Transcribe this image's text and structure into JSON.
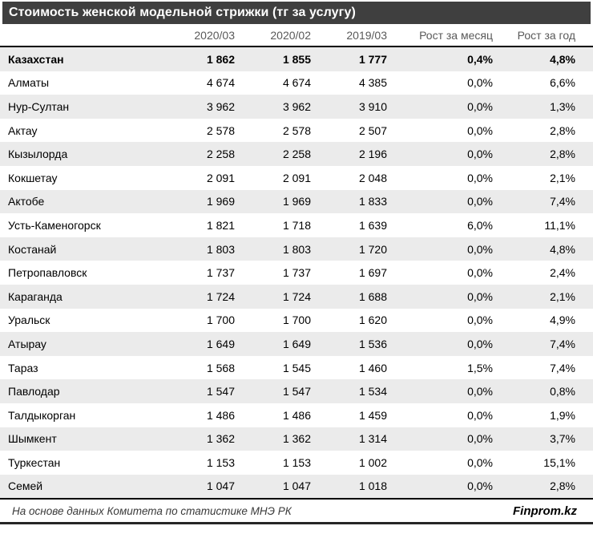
{
  "title": "Стоимость женской модельной стрижки (тг за услугу)",
  "colors": {
    "title_bar_bg": "#3f3f3f",
    "title_text": "#ffffff",
    "column_header_text": "#595959",
    "row_stripe": "#ebebeb",
    "body_text": "#000000",
    "border": "#000000"
  },
  "table": {
    "columns": [
      "",
      "2020/03",
      "2020/02",
      "2019/03",
      "Рост за месяц",
      "Рост за год"
    ],
    "rows": [
      {
        "bold": true,
        "cells": [
          "Казахстан",
          "1 862",
          "1 855",
          "1 777",
          "0,4%",
          "4,8%"
        ]
      },
      {
        "bold": false,
        "cells": [
          "Алматы",
          "4 674",
          "4 674",
          "4 385",
          "0,0%",
          "6,6%"
        ]
      },
      {
        "bold": false,
        "cells": [
          "Нур-Султан",
          "3 962",
          "3 962",
          "3 910",
          "0,0%",
          "1,3%"
        ]
      },
      {
        "bold": false,
        "cells": [
          "Актау",
          "2 578",
          "2 578",
          "2 507",
          "0,0%",
          "2,8%"
        ]
      },
      {
        "bold": false,
        "cells": [
          "Кызылорда",
          "2 258",
          "2 258",
          "2 196",
          "0,0%",
          "2,8%"
        ]
      },
      {
        "bold": false,
        "cells": [
          "Кокшетау",
          "2 091",
          "2 091",
          "2 048",
          "0,0%",
          "2,1%"
        ]
      },
      {
        "bold": false,
        "cells": [
          "Актобе",
          "1 969",
          "1 969",
          "1 833",
          "0,0%",
          "7,4%"
        ]
      },
      {
        "bold": false,
        "cells": [
          "Усть-Каменогорск",
          "1 821",
          "1 718",
          "1 639",
          "6,0%",
          "11,1%"
        ]
      },
      {
        "bold": false,
        "cells": [
          "Костанай",
          "1 803",
          "1 803",
          "1 720",
          "0,0%",
          "4,8%"
        ]
      },
      {
        "bold": false,
        "cells": [
          "Петропавловск",
          "1 737",
          "1 737",
          "1 697",
          "0,0%",
          "2,4%"
        ]
      },
      {
        "bold": false,
        "cells": [
          "Караганда",
          "1 724",
          "1 724",
          "1 688",
          "0,0%",
          "2,1%"
        ]
      },
      {
        "bold": false,
        "cells": [
          "Уральск",
          "1 700",
          "1 700",
          "1 620",
          "0,0%",
          "4,9%"
        ]
      },
      {
        "bold": false,
        "cells": [
          "Атырау",
          "1 649",
          "1 649",
          "1 536",
          "0,0%",
          "7,4%"
        ]
      },
      {
        "bold": false,
        "cells": [
          "Тараз",
          "1 568",
          "1 545",
          "1 460",
          "1,5%",
          "7,4%"
        ]
      },
      {
        "bold": false,
        "cells": [
          "Павлодар",
          "1 547",
          "1 547",
          "1 534",
          "0,0%",
          "0,8%"
        ]
      },
      {
        "bold": false,
        "cells": [
          "Талдыкорган",
          "1 486",
          "1 486",
          "1 459",
          "0,0%",
          "1,9%"
        ]
      },
      {
        "bold": false,
        "cells": [
          "Шымкент",
          "1 362",
          "1 362",
          "1 314",
          "0,0%",
          "3,7%"
        ]
      },
      {
        "bold": false,
        "cells": [
          "Туркестан",
          "1 153",
          "1 153",
          "1 002",
          "0,0%",
          "15,1%"
        ]
      },
      {
        "bold": false,
        "cells": [
          "Семей",
          "1 047",
          "1 047",
          "1 018",
          "0,0%",
          "2,8%"
        ]
      }
    ]
  },
  "footer": {
    "source": "На основе данных Комитета по статистике МНЭ РК",
    "brand": "Finprom.kz"
  },
  "chart_data": {
    "type": "table",
    "title": "Стоимость женской модельной стрижки (тг за услугу)",
    "columns": [
      "2020/03",
      "2020/02",
      "2019/03",
      "Рост за месяц",
      "Рост за год"
    ],
    "rows": [
      {
        "region": "Казахстан",
        "values": [
          1862,
          1855,
          1777
        ],
        "growth_month_pct": 0.4,
        "growth_year_pct": 4.8
      },
      {
        "region": "Алматы",
        "values": [
          4674,
          4674,
          4385
        ],
        "growth_month_pct": 0.0,
        "growth_year_pct": 6.6
      },
      {
        "region": "Нур-Султан",
        "values": [
          3962,
          3962,
          3910
        ],
        "growth_month_pct": 0.0,
        "growth_year_pct": 1.3
      },
      {
        "region": "Актау",
        "values": [
          2578,
          2578,
          2507
        ],
        "growth_month_pct": 0.0,
        "growth_year_pct": 2.8
      },
      {
        "region": "Кызылорда",
        "values": [
          2258,
          2258,
          2196
        ],
        "growth_month_pct": 0.0,
        "growth_year_pct": 2.8
      },
      {
        "region": "Кокшетау",
        "values": [
          2091,
          2091,
          2048
        ],
        "growth_month_pct": 0.0,
        "growth_year_pct": 2.1
      },
      {
        "region": "Актобе",
        "values": [
          1969,
          1969,
          1833
        ],
        "growth_month_pct": 0.0,
        "growth_year_pct": 7.4
      },
      {
        "region": "Усть-Каменогорск",
        "values": [
          1821,
          1718,
          1639
        ],
        "growth_month_pct": 6.0,
        "growth_year_pct": 11.1
      },
      {
        "region": "Костанай",
        "values": [
          1803,
          1803,
          1720
        ],
        "growth_month_pct": 0.0,
        "growth_year_pct": 4.8
      },
      {
        "region": "Петропавловск",
        "values": [
          1737,
          1737,
          1697
        ],
        "growth_month_pct": 0.0,
        "growth_year_pct": 2.4
      },
      {
        "region": "Караганда",
        "values": [
          1724,
          1724,
          1688
        ],
        "growth_month_pct": 0.0,
        "growth_year_pct": 2.1
      },
      {
        "region": "Уральск",
        "values": [
          1700,
          1700,
          1620
        ],
        "growth_month_pct": 0.0,
        "growth_year_pct": 4.9
      },
      {
        "region": "Атырау",
        "values": [
          1649,
          1649,
          1536
        ],
        "growth_month_pct": 0.0,
        "growth_year_pct": 7.4
      },
      {
        "region": "Тараз",
        "values": [
          1568,
          1545,
          1460
        ],
        "growth_month_pct": 1.5,
        "growth_year_pct": 7.4
      },
      {
        "region": "Павлодар",
        "values": [
          1547,
          1547,
          1534
        ],
        "growth_month_pct": 0.0,
        "growth_year_pct": 0.8
      },
      {
        "region": "Талдыкорган",
        "values": [
          1486,
          1486,
          1459
        ],
        "growth_month_pct": 0.0,
        "growth_year_pct": 1.9
      },
      {
        "region": "Шымкент",
        "values": [
          1362,
          1362,
          1314
        ],
        "growth_month_pct": 0.0,
        "growth_year_pct": 3.7
      },
      {
        "region": "Туркестан",
        "values": [
          1153,
          1153,
          1002
        ],
        "growth_month_pct": 0.0,
        "growth_year_pct": 15.1
      },
      {
        "region": "Семей",
        "values": [
          1047,
          1047,
          1018
        ],
        "growth_month_pct": 0.0,
        "growth_year_pct": 2.8
      }
    ]
  }
}
